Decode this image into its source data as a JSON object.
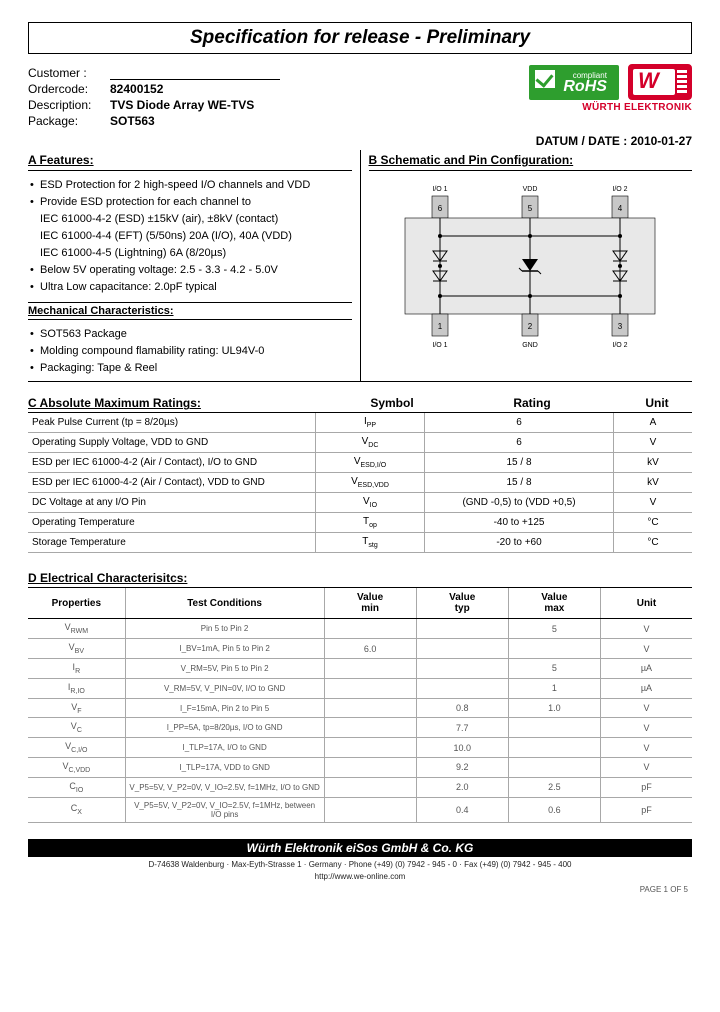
{
  "title": "Specification for release  - Preliminary",
  "header": {
    "customer_label": "Customer :",
    "customer_value": "",
    "ordercode_label": "Ordercode:",
    "ordercode_value": "82400152",
    "description_label": "Description:",
    "description_value": "TVS Diode Array WE-TVS",
    "package_label": "Package:",
    "package_value": "SOT563",
    "rohs_small": "compliant",
    "rohs_text": "RoHS",
    "company_name": "WÜRTH ELEKTRONIK",
    "date_label": "DATUM / DATE :",
    "date_value": "2010-01-27"
  },
  "sectionA": {
    "title": "A  Features:",
    "bullets": [
      "ESD Protection for 2 high-speed I/O channels and VDD",
      "Provide ESD protection for each channel to\nIEC 61000-4-2 (ESD) ±15kV (air), ±8kV (contact)\nIEC 61000-4-4 (EFT) (5/50ns) 20A (I/O), 40A (VDD)\nIEC 61000-4-5 (Lightning) 6A (8/20µs)",
      "Below 5V operating voltage: 2.5 - 3.3 - 4.2 - 5.0V",
      "Ultra Low capacitance: 2.0pF typical"
    ],
    "mech_title": "Mechanical Characteristics:",
    "mech_bullets": [
      "SOT563 Package",
      "Molding compound flamability rating: UL94V-0",
      "Packaging: Tape & Reel"
    ]
  },
  "sectionB": {
    "title": "B  Schematic and Pin Configuration:",
    "pins_top": [
      "I/O 1",
      "VDD",
      "I/O 2"
    ],
    "pin_nums_top": [
      "6",
      "5",
      "4"
    ],
    "pin_nums_bot": [
      "1",
      "2",
      "3"
    ],
    "pins_bot": [
      "I/O 1",
      "GND",
      "I/O 2"
    ]
  },
  "sectionC": {
    "title": "C  Absolute Maximum Ratings:",
    "col_symbol": "Symbol",
    "col_rating": "Rating",
    "col_unit": "Unit",
    "rows": [
      {
        "desc": "Peak Pulse Current (tp = 8/20µs)",
        "sym": "I",
        "sub": "PP",
        "rating": "6",
        "unit": "A"
      },
      {
        "desc": "Operating Supply Voltage, VDD to GND",
        "sym": "V",
        "sub": "DC",
        "rating": "6",
        "unit": "V"
      },
      {
        "desc": "ESD per IEC 61000-4-2 (Air / Contact), I/O to GND",
        "sym": "V",
        "sub": "ESD,I/O",
        "rating": "15 / 8",
        "unit": "kV"
      },
      {
        "desc": "ESD per IEC 61000-4-2 (Air / Contact), VDD to GND",
        "sym": "V",
        "sub": "ESD,VDD",
        "rating": "15 / 8",
        "unit": "kV"
      },
      {
        "desc": "DC Voltage at any I/O Pin",
        "sym": "V",
        "sub": "IO",
        "rating": "(GND -0,5) to (VDD +0,5)",
        "unit": "V"
      },
      {
        "desc": "Operating Temperature",
        "sym": "T",
        "sub": "op",
        "rating": "-40 to +125",
        "unit": "°C"
      },
      {
        "desc": "Storage Temperature",
        "sym": "T",
        "sub": "stg",
        "rating": "-20 to +60",
        "unit": "°C"
      }
    ]
  },
  "sectionD": {
    "title": "D  Electrical Characterisitcs:",
    "cols": [
      "Properties",
      "Test Conditions",
      "Value min",
      "Value typ",
      "Value max",
      "Unit"
    ],
    "rows": [
      {
        "prop": "V_RWM",
        "cond": "Pin 5 to Pin 2",
        "min": "",
        "typ": "",
        "max": "5",
        "unit": "V"
      },
      {
        "prop": "V_BV",
        "cond": "I_BV=1mA, Pin 5 to Pin 2",
        "min": "6.0",
        "typ": "",
        "max": "",
        "unit": "V"
      },
      {
        "prop": "I_R",
        "cond": "V_RM=5V, Pin 5 to Pin 2",
        "min": "",
        "typ": "",
        "max": "5",
        "unit": "µA"
      },
      {
        "prop": "I_R,IO",
        "cond": "V_RM=5V, V_PIN=0V, I/O to GND",
        "min": "",
        "typ": "",
        "max": "1",
        "unit": "µA"
      },
      {
        "prop": "V_F",
        "cond": "I_F=15mA, Pin 2 to Pin 5",
        "min": "",
        "typ": "0.8",
        "max": "1.0",
        "unit": "V"
      },
      {
        "prop": "V_C",
        "cond": "I_PP=5A, tp=8/20µs, I/O to GND",
        "min": "",
        "typ": "7.7",
        "max": "",
        "unit": "V"
      },
      {
        "prop": "V_C,I/O",
        "cond": "I_TLP=17A, I/O to GND",
        "min": "",
        "typ": "10.0",
        "max": "",
        "unit": "V"
      },
      {
        "prop": "V_C,VDD",
        "cond": "I_TLP=17A, VDD to GND",
        "min": "",
        "typ": "9.2",
        "max": "",
        "unit": "V"
      },
      {
        "prop": "C_IO",
        "cond": "V_P5=5V, V_P2=0V, V_IO=2.5V, f=1MHz, I/O to GND",
        "min": "",
        "typ": "2.0",
        "max": "2.5",
        "unit": "pF"
      },
      {
        "prop": "C_X",
        "cond": "V_P5=5V, V_P2=0V, V_IO=2.5V, f=1MHz, between I/O pins",
        "min": "",
        "typ": "0.4",
        "max": "0.6",
        "unit": "pF"
      }
    ]
  },
  "footer": {
    "bar": "Würth Elektronik eiSos GmbH & Co. KG",
    "addr": "D-74638 Waldenburg · Max-Eyth-Strasse 1 · Germany · Phone (+49) (0) 7942 - 945 - 0 · Fax (+49) (0) 7942 - 945 - 400",
    "url": "http://www.we-online.com",
    "page": "PAGE 1 OF 5"
  },
  "colors": {
    "red": "#d4002a",
    "green": "#2e9e2e"
  }
}
